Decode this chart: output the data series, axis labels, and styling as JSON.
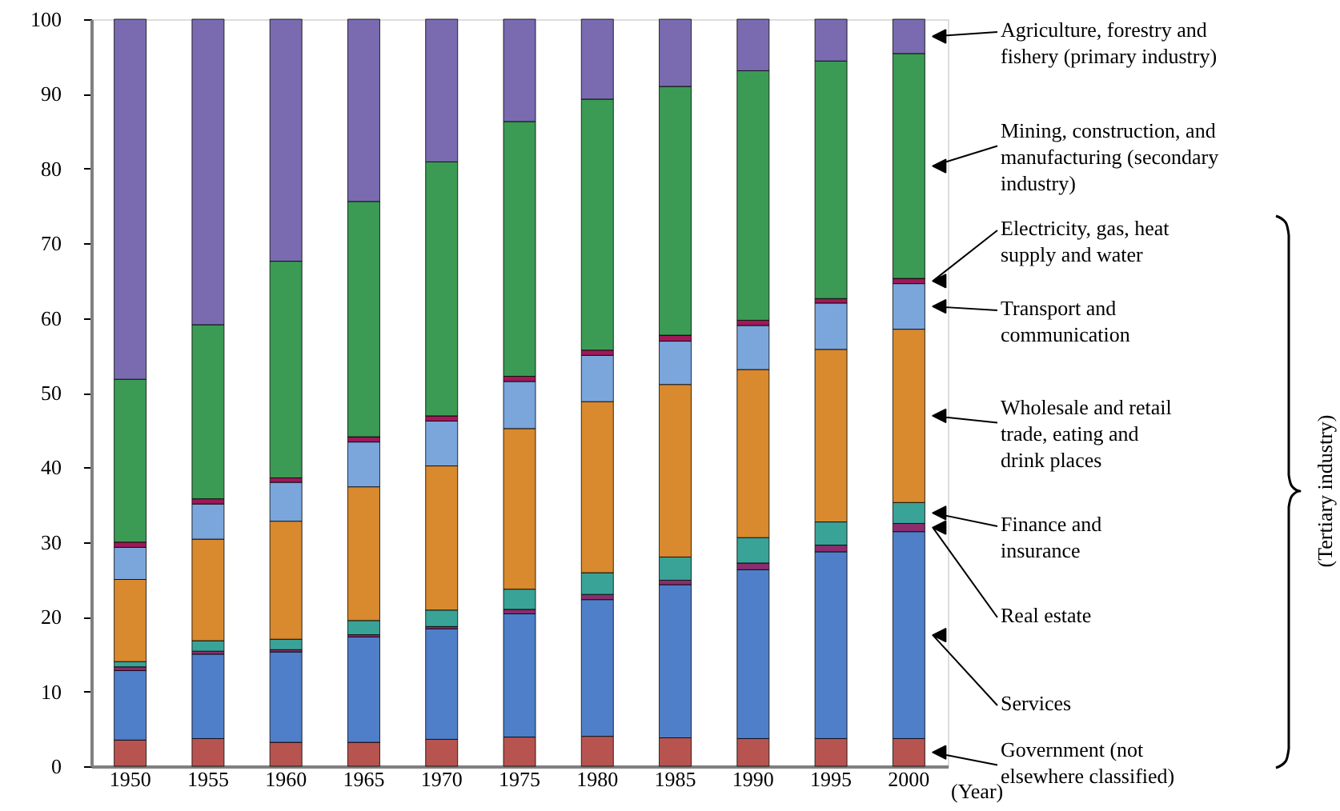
{
  "chart_data": {
    "type": "bar",
    "stacked": true,
    "xlabel": "(Year)",
    "categories": [
      "1950",
      "1955",
      "1960",
      "1965",
      "1970",
      "1975",
      "1980",
      "1985",
      "1990",
      "1995",
      "2000"
    ],
    "series": [
      {
        "name": "Government (not elsewhere classified)",
        "color": "#b85450",
        "values": [
          3.5,
          3.7,
          3.2,
          3.2,
          3.6,
          3.9,
          4.0,
          3.8,
          3.7,
          3.7,
          3.7
        ]
      },
      {
        "name": "Services",
        "color": "#4f7fc9",
        "values": [
          9.3,
          11.3,
          12.1,
          14.1,
          14.8,
          16.5,
          18.3,
          20.5,
          22.6,
          25.0,
          27.7
        ]
      },
      {
        "name": "Real estate",
        "color": "#8b2d6e",
        "values": [
          0.5,
          0.4,
          0.3,
          0.3,
          0.3,
          0.6,
          0.7,
          0.6,
          0.9,
          0.9,
          1.1
        ]
      },
      {
        "name": "Finance and insurance",
        "color": "#3aa398",
        "values": [
          0.7,
          1.4,
          1.4,
          1.9,
          2.2,
          2.7,
          2.9,
          3.1,
          3.4,
          3.1,
          2.8
        ]
      },
      {
        "name": "Wholesale and retail trade, eating and drink places",
        "color": "#d9892e",
        "values": [
          11.0,
          13.6,
          15.8,
          17.9,
          19.3,
          21.5,
          22.9,
          23.1,
          22.5,
          23.1,
          23.2
        ]
      },
      {
        "name": "Transport and communication",
        "color": "#7aa6dc",
        "values": [
          4.3,
          4.7,
          5.2,
          6.0,
          6.0,
          6.3,
          6.2,
          5.8,
          5.9,
          6.2,
          6.1
        ]
      },
      {
        "name": "Electricity, gas, heat supply and water",
        "color": "#a0185a",
        "values": [
          0.7,
          0.7,
          0.6,
          0.7,
          0.7,
          0.7,
          0.7,
          0.8,
          0.7,
          0.6,
          0.7
        ]
      },
      {
        "name": "Mining, construction, and manufacturing (secondary industry)",
        "color": "#3b9b55",
        "values": [
          21.8,
          23.3,
          29.0,
          31.5,
          34.0,
          34.1,
          33.6,
          33.3,
          33.4,
          31.8,
          30.1
        ]
      },
      {
        "name": "Agriculture, forestry and fishery (primary industry)",
        "color": "#7a6bb0",
        "values": [
          48.2,
          40.9,
          32.4,
          24.4,
          19.1,
          13.7,
          10.7,
          9.0,
          6.9,
          5.6,
          4.6
        ]
      }
    ],
    "ylim": [
      0,
      100
    ],
    "yticks": [
      0,
      10,
      20,
      30,
      40,
      50,
      60,
      70,
      80,
      90,
      100
    ],
    "grid": false,
    "legend": "right",
    "annotations": [
      "(Tertiary industry)"
    ]
  }
}
